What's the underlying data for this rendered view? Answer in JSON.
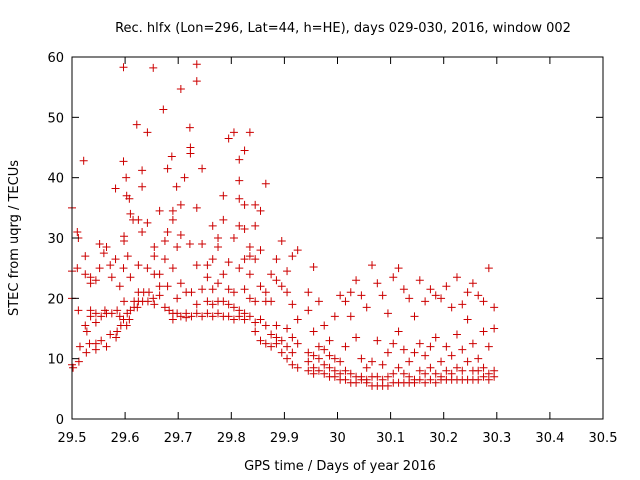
{
  "chart_data": {
    "type": "scatter",
    "title": "Rec. hlfx (Lon=296, Lat=44, h=HE), days 029-030, 2016, window 002",
    "xlabel": "GPS time / Days of year 2016",
    "ylabel": "STEC from uqrg / TECUs",
    "xlim": [
      29.5,
      30.5
    ],
    "ylim": [
      0,
      60
    ],
    "xticks": [
      "29.5",
      "29.6",
      "29.7",
      "29.8",
      "29.9",
      "30",
      "30.1",
      "30.2",
      "30.3",
      "30.4",
      "30.5"
    ],
    "yticks": [
      "0",
      "10",
      "20",
      "30",
      "40",
      "50",
      "60"
    ],
    "grid": false,
    "legend": "none",
    "marker": "plus",
    "color": "#cc0000",
    "points": [
      [
        29.5,
        35.0
      ],
      [
        29.5,
        24.5
      ],
      [
        29.5,
        20.0
      ],
      [
        29.5,
        9.0
      ],
      [
        29.502,
        8.5
      ],
      [
        29.51,
        31.0
      ],
      [
        29.512,
        30.0
      ],
      [
        29.51,
        25.0
      ],
      [
        29.512,
        18.0
      ],
      [
        29.515,
        12.0
      ],
      [
        29.513,
        9.5
      ],
      [
        29.522,
        42.8
      ],
      [
        29.525,
        27.0
      ],
      [
        29.525,
        24.0
      ],
      [
        29.525,
        15.5
      ],
      [
        29.528,
        14.5
      ],
      [
        29.527,
        11.0
      ],
      [
        29.535,
        23.5
      ],
      [
        29.535,
        22.5
      ],
      [
        29.535,
        18.0
      ],
      [
        29.535,
        17.0
      ],
      [
        29.533,
        12.5
      ],
      [
        29.545,
        23.0
      ],
      [
        29.545,
        17.5
      ],
      [
        29.545,
        16.0
      ],
      [
        29.545,
        12.5
      ],
      [
        29.545,
        11.5
      ],
      [
        29.552,
        29.0
      ],
      [
        29.552,
        25.0
      ],
      [
        29.555,
        17.0
      ],
      [
        29.555,
        13.0
      ],
      [
        29.56,
        27.5
      ],
      [
        29.565,
        28.5
      ],
      [
        29.562,
        18.0
      ],
      [
        29.565,
        17.5
      ],
      [
        29.565,
        12.0
      ],
      [
        29.572,
        25.5
      ],
      [
        29.575,
        23.5
      ],
      [
        29.575,
        17.5
      ],
      [
        29.572,
        14.0
      ],
      [
        29.582,
        38.2
      ],
      [
        29.582,
        26.5
      ],
      [
        29.585,
        18.0
      ],
      [
        29.585,
        14.5
      ],
      [
        29.583,
        13.5
      ],
      [
        29.59,
        22.0
      ],
      [
        29.59,
        17.0
      ],
      [
        29.592,
        15.5
      ],
      [
        29.597,
        58.3
      ],
      [
        29.597,
        42.7
      ],
      [
        29.598,
        30.3
      ],
      [
        29.598,
        29.5
      ],
      [
        29.597,
        25.0
      ],
      [
        29.598,
        19.5
      ],
      [
        29.597,
        16.5
      ],
      [
        29.602,
        40.0
      ],
      [
        29.603,
        37.0
      ],
      [
        29.605,
        27.0
      ],
      [
        29.604,
        17.5
      ],
      [
        29.603,
        15.5
      ],
      [
        29.608,
        36.5
      ],
      [
        29.61,
        34.0
      ],
      [
        29.61,
        23.5
      ],
      [
        29.61,
        18.0
      ],
      [
        29.608,
        16.5
      ],
      [
        29.615,
        33.0
      ],
      [
        29.617,
        19.5
      ],
      [
        29.617,
        18.5
      ],
      [
        29.622,
        48.8
      ],
      [
        29.625,
        33.0
      ],
      [
        29.625,
        25.5
      ],
      [
        29.625,
        21.0
      ],
      [
        29.625,
        19.5
      ],
      [
        29.623,
        18.5
      ],
      [
        29.632,
        41.2
      ],
      [
        29.632,
        38.5
      ],
      [
        29.632,
        31.0
      ],
      [
        29.635,
        21.0
      ],
      [
        29.633,
        19.5
      ],
      [
        29.642,
        47.5
      ],
      [
        29.642,
        32.5
      ],
      [
        29.642,
        25.0
      ],
      [
        29.645,
        21.0
      ],
      [
        29.643,
        19.5
      ],
      [
        29.653,
        58.2
      ],
      [
        29.655,
        28.5
      ],
      [
        29.655,
        27.0
      ],
      [
        29.655,
        24.0
      ],
      [
        29.653,
        20.0
      ],
      [
        29.655,
        19.0
      ],
      [
        29.665,
        34.5
      ],
      [
        29.665,
        24.0
      ],
      [
        29.665,
        22.0
      ],
      [
        29.665,
        20.5
      ],
      [
        29.672,
        51.3
      ],
      [
        29.675,
        29.5
      ],
      [
        29.675,
        26.5
      ],
      [
        29.675,
        18.5
      ],
      [
        29.68,
        41.5
      ],
      [
        29.68,
        31.0
      ],
      [
        29.68,
        22.0
      ],
      [
        29.683,
        18.0
      ],
      [
        29.688,
        43.5
      ],
      [
        29.69,
        34.5
      ],
      [
        29.69,
        33.0
      ],
      [
        29.69,
        25.0
      ],
      [
        29.69,
        17.5
      ],
      [
        29.69,
        16.5
      ],
      [
        29.697,
        38.5
      ],
      [
        29.698,
        28.5
      ],
      [
        29.698,
        20.0
      ],
      [
        29.698,
        17.5
      ],
      [
        29.705,
        54.7
      ],
      [
        29.705,
        35.5
      ],
      [
        29.705,
        30.5
      ],
      [
        29.705,
        22.5
      ],
      [
        29.705,
        17.0
      ],
      [
        29.712,
        40.0
      ],
      [
        29.715,
        21.0
      ],
      [
        29.715,
        17.5
      ],
      [
        29.715,
        16.8
      ],
      [
        29.722,
        48.3
      ],
      [
        29.723,
        45.0
      ],
      [
        29.723,
        44.0
      ],
      [
        29.722,
        29.0
      ],
      [
        29.725,
        21.0
      ],
      [
        29.725,
        17.0
      ],
      [
        29.735,
        58.8
      ],
      [
        29.735,
        56.0
      ],
      [
        29.735,
        35.0
      ],
      [
        29.735,
        25.5
      ],
      [
        29.735,
        19.0
      ],
      [
        29.735,
        17.5
      ],
      [
        29.745,
        41.5
      ],
      [
        29.745,
        29.0
      ],
      [
        29.745,
        21.5
      ],
      [
        29.745,
        17.0
      ],
      [
        29.755,
        25.5
      ],
      [
        29.755,
        23.5
      ],
      [
        29.755,
        19.5
      ],
      [
        29.755,
        17.5
      ],
      [
        29.765,
        32.0
      ],
      [
        29.765,
        26.5
      ],
      [
        29.765,
        21.5
      ],
      [
        29.765,
        19.0
      ],
      [
        29.765,
        17.0
      ],
      [
        29.775,
        30.0
      ],
      [
        29.775,
        28.5
      ],
      [
        29.775,
        22.5
      ],
      [
        29.775,
        19.5
      ],
      [
        29.775,
        17.5
      ],
      [
        29.785,
        37.0
      ],
      [
        29.785,
        33.0
      ],
      [
        29.785,
        24.0
      ],
      [
        29.785,
        19.5
      ],
      [
        29.785,
        17.0
      ],
      [
        29.795,
        46.5
      ],
      [
        29.795,
        26.0
      ],
      [
        29.795,
        21.5
      ],
      [
        29.795,
        19.0
      ],
      [
        29.795,
        17.0
      ],
      [
        29.805,
        47.5
      ],
      [
        29.805,
        30.0
      ],
      [
        29.805,
        21.0
      ],
      [
        29.805,
        18.5
      ],
      [
        29.805,
        16.5
      ],
      [
        29.815,
        43.0
      ],
      [
        29.815,
        39.5
      ],
      [
        29.815,
        36.5
      ],
      [
        29.815,
        32.0
      ],
      [
        29.815,
        25.0
      ],
      [
        29.815,
        18.0
      ],
      [
        29.815,
        17.0
      ],
      [
        29.825,
        44.5
      ],
      [
        29.825,
        35.5
      ],
      [
        29.825,
        31.5
      ],
      [
        29.825,
        26.5
      ],
      [
        29.825,
        21.5
      ],
      [
        29.825,
        17.5
      ],
      [
        29.825,
        16.5
      ],
      [
        29.835,
        47.5
      ],
      [
        29.835,
        28.5
      ],
      [
        29.835,
        27.0
      ],
      [
        29.835,
        24.0
      ],
      [
        29.835,
        20.0
      ],
      [
        29.835,
        17.0
      ],
      [
        29.845,
        35.5
      ],
      [
        29.845,
        32.0
      ],
      [
        29.845,
        26.5
      ],
      [
        29.845,
        19.5
      ],
      [
        29.845,
        16.0
      ],
      [
        29.845,
        14.5
      ],
      [
        29.855,
        34.5
      ],
      [
        29.855,
        28.0
      ],
      [
        29.855,
        22.0
      ],
      [
        29.855,
        16.5
      ],
      [
        29.855,
        13.0
      ],
      [
        29.865,
        39.0
      ],
      [
        29.865,
        21.0
      ],
      [
        29.865,
        19.5
      ],
      [
        29.865,
        15.5
      ],
      [
        29.865,
        12.5
      ],
      [
        29.875,
        24.0
      ],
      [
        29.875,
        19.5
      ],
      [
        29.875,
        14.0
      ],
      [
        29.875,
        12.0
      ],
      [
        29.885,
        26.5
      ],
      [
        29.885,
        23.0
      ],
      [
        29.885,
        15.5
      ],
      [
        29.885,
        13.5
      ],
      [
        29.885,
        12.5
      ],
      [
        29.895,
        29.5
      ],
      [
        29.895,
        22.0
      ],
      [
        29.895,
        13.0
      ],
      [
        29.895,
        11.0
      ],
      [
        29.905,
        24.5
      ],
      [
        29.905,
        21.0
      ],
      [
        29.905,
        15.0
      ],
      [
        29.905,
        12.0
      ],
      [
        29.905,
        10.0
      ],
      [
        29.915,
        27.0
      ],
      [
        29.915,
        19.0
      ],
      [
        29.915,
        13.5
      ],
      [
        29.915,
        11.0
      ],
      [
        29.915,
        9.0
      ],
      [
        29.925,
        28.0
      ],
      [
        29.925,
        16.5
      ],
      [
        29.925,
        12.5
      ],
      [
        29.925,
        8.5
      ],
      [
        29.945,
        21.0
      ],
      [
        29.945,
        18.0
      ],
      [
        29.945,
        11.0
      ],
      [
        29.945,
        9.5
      ],
      [
        29.945,
        8.0
      ],
      [
        29.955,
        25.2
      ],
      [
        29.955,
        14.5
      ],
      [
        29.955,
        10.5
      ],
      [
        29.955,
        8.5
      ],
      [
        29.955,
        7.5
      ],
      [
        29.965,
        19.5
      ],
      [
        29.965,
        12.0
      ],
      [
        29.965,
        10.0
      ],
      [
        29.965,
        8.0
      ],
      [
        29.975,
        15.5
      ],
      [
        29.975,
        11.5
      ],
      [
        29.975,
        9.0
      ],
      [
        29.975,
        7.5
      ],
      [
        29.985,
        13.0
      ],
      [
        29.985,
        10.5
      ],
      [
        29.985,
        8.5
      ],
      [
        29.985,
        7.0
      ],
      [
        29.995,
        17.0
      ],
      [
        29.995,
        10.0
      ],
      [
        29.995,
        8.0
      ],
      [
        29.995,
        7.0
      ],
      [
        30.005,
        20.5
      ],
      [
        30.005,
        9.5
      ],
      [
        30.005,
        7.5
      ],
      [
        30.005,
        6.5
      ],
      [
        30.015,
        19.5
      ],
      [
        30.015,
        12.0
      ],
      [
        30.015,
        8.0
      ],
      [
        30.015,
        6.5
      ],
      [
        30.025,
        21.0
      ],
      [
        30.025,
        17.0
      ],
      [
        30.025,
        7.5
      ],
      [
        30.025,
        6.0
      ],
      [
        30.035,
        23.0
      ],
      [
        30.035,
        13.5
      ],
      [
        30.035,
        7.0
      ],
      [
        30.035,
        6.0
      ],
      [
        30.045,
        20.5
      ],
      [
        30.045,
        10.0
      ],
      [
        30.045,
        7.0
      ],
      [
        30.045,
        6.5
      ],
      [
        30.055,
        18.5
      ],
      [
        30.055,
        8.5
      ],
      [
        30.055,
        6.5
      ],
      [
        30.055,
        6.0
      ],
      [
        30.065,
        25.5
      ],
      [
        30.065,
        9.5
      ],
      [
        30.065,
        7.0
      ],
      [
        30.065,
        5.5
      ],
      [
        30.075,
        22.5
      ],
      [
        30.075,
        13.0
      ],
      [
        30.075,
        7.0
      ],
      [
        30.075,
        5.5
      ],
      [
        30.085,
        20.5
      ],
      [
        30.085,
        9.0
      ],
      [
        30.085,
        6.5
      ],
      [
        30.085,
        5.5
      ],
      [
        30.095,
        17.5
      ],
      [
        30.095,
        11.0
      ],
      [
        30.095,
        7.0
      ],
      [
        30.095,
        5.5
      ],
      [
        30.105,
        23.5
      ],
      [
        30.105,
        12.5
      ],
      [
        30.105,
        7.5
      ],
      [
        30.105,
        6.0
      ],
      [
        30.115,
        25.0
      ],
      [
        30.115,
        14.5
      ],
      [
        30.115,
        8.5
      ],
      [
        30.115,
        6.0
      ],
      [
        30.125,
        21.5
      ],
      [
        30.125,
        11.5
      ],
      [
        30.125,
        7.5
      ],
      [
        30.125,
        6.0
      ],
      [
        30.135,
        20.0
      ],
      [
        30.135,
        9.5
      ],
      [
        30.135,
        7.0
      ],
      [
        30.135,
        6.0
      ],
      [
        30.145,
        17.0
      ],
      [
        30.145,
        11.0
      ],
      [
        30.145,
        6.5
      ],
      [
        30.145,
        6.0
      ],
      [
        30.155,
        23.0
      ],
      [
        30.155,
        12.5
      ],
      [
        30.155,
        8.0
      ],
      [
        30.155,
        6.5
      ],
      [
        30.165,
        19.5
      ],
      [
        30.165,
        10.5
      ],
      [
        30.165,
        7.5
      ],
      [
        30.165,
        6.0
      ],
      [
        30.175,
        21.5
      ],
      [
        30.175,
        12.0
      ],
      [
        30.175,
        8.5
      ],
      [
        30.175,
        6.5
      ],
      [
        30.185,
        20.5
      ],
      [
        30.185,
        13.5
      ],
      [
        30.185,
        7.5
      ],
      [
        30.185,
        6.0
      ],
      [
        30.195,
        20.0
      ],
      [
        30.195,
        9.5
      ],
      [
        30.195,
        7.0
      ],
      [
        30.195,
        6.5
      ],
      [
        30.205,
        22.0
      ],
      [
        30.205,
        12.0
      ],
      [
        30.205,
        8.0
      ],
      [
        30.205,
        6.5
      ],
      [
        30.215,
        18.5
      ],
      [
        30.215,
        10.5
      ],
      [
        30.215,
        7.5
      ],
      [
        30.215,
        6.5
      ],
      [
        30.225,
        23.5
      ],
      [
        30.225,
        14.0
      ],
      [
        30.225,
        8.5
      ],
      [
        30.225,
        6.5
      ],
      [
        30.235,
        19.0
      ],
      [
        30.235,
        11.5
      ],
      [
        30.235,
        8.0
      ],
      [
        30.235,
        6.5
      ],
      [
        30.245,
        21.0
      ],
      [
        30.245,
        16.5
      ],
      [
        30.245,
        9.5
      ],
      [
        30.245,
        6.5
      ],
      [
        30.255,
        22.5
      ],
      [
        30.255,
        12.5
      ],
      [
        30.255,
        8.0
      ],
      [
        30.255,
        6.5
      ],
      [
        30.265,
        20.5
      ],
      [
        30.265,
        10.0
      ],
      [
        30.265,
        8.0
      ],
      [
        30.265,
        6.5
      ],
      [
        30.275,
        19.5
      ],
      [
        30.275,
        14.5
      ],
      [
        30.275,
        8.5
      ],
      [
        30.275,
        7.0
      ],
      [
        30.285,
        25.0
      ],
      [
        30.285,
        12.0
      ],
      [
        30.285,
        7.5
      ],
      [
        30.285,
        6.5
      ],
      [
        30.295,
        18.5
      ],
      [
        30.295,
        15.0
      ],
      [
        30.295,
        8.0
      ],
      [
        30.295,
        7.0
      ]
    ]
  }
}
